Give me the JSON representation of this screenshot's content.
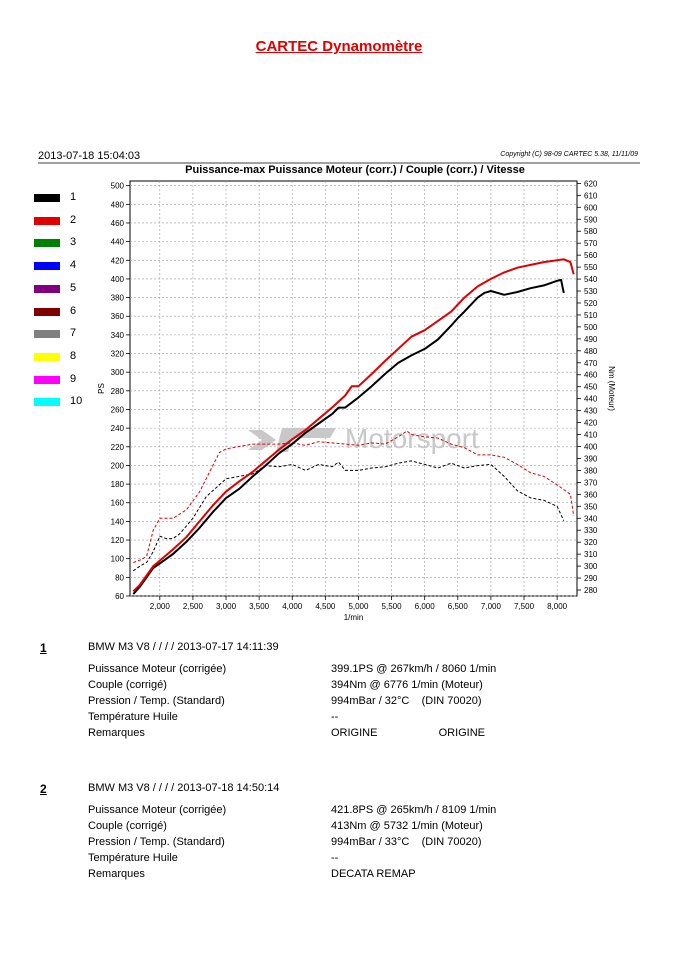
{
  "report_title": "CARTEC Dynamomètre",
  "header": {
    "date": "2013-07-18 15:04:03",
    "copyright": "Copyright (C) 98-09 CARTEC 5.38, 11/11/09"
  },
  "chart_data": {
    "type": "line",
    "title": "Puissance-max Puissance Moteur (corr.) / Couple (corr.) / Vitesse",
    "xlabel": "1/min",
    "ylabel": "PS",
    "y2label": "Nm (Moteur)",
    "xlim": [
      1550,
      8300
    ],
    "ylim": [
      60,
      505
    ],
    "y2lim": [
      275,
      622
    ],
    "grid": true,
    "watermark": "Motorsport",
    "x_ticks": [
      2000,
      2500,
      3000,
      3500,
      4000,
      4500,
      5000,
      5500,
      6000,
      6500,
      7000,
      7500,
      8000
    ],
    "x_tick_labels": [
      "2,000",
      "2,500",
      "3,000",
      "3,500",
      "4,000",
      "4,500",
      "5,000",
      "5,500",
      "6,000",
      "6,500",
      "7,000",
      "7,500",
      "8,000"
    ],
    "y_ticks": [
      60,
      80,
      100,
      120,
      140,
      160,
      180,
      200,
      220,
      240,
      260,
      280,
      300,
      320,
      340,
      360,
      380,
      400,
      420,
      440,
      460,
      480,
      500
    ],
    "y2_ticks": [
      280,
      290,
      300,
      310,
      320,
      330,
      340,
      350,
      360,
      370,
      380,
      390,
      400,
      410,
      420,
      430,
      440,
      450,
      460,
      470,
      480,
      490,
      500,
      510,
      520,
      530,
      540,
      550,
      560,
      570,
      580,
      590,
      600,
      610,
      620
    ],
    "legend": [
      {
        "label": "1",
        "color": "#000000"
      },
      {
        "label": "2",
        "color": "#e00000"
      },
      {
        "label": "3",
        "color": "#008000"
      },
      {
        "label": "4",
        "color": "#0000ff"
      },
      {
        "label": "5",
        "color": "#800080"
      },
      {
        "label": "6",
        "color": "#800000"
      },
      {
        "label": "7",
        "color": "#808080"
      },
      {
        "label": "8",
        "color": "#ffff00"
      },
      {
        "label": "9",
        "color": "#ff00ff"
      },
      {
        "label": "10",
        "color": "#00ffff"
      }
    ],
    "series": [
      {
        "name": "1",
        "kind": "power",
        "axis": "left",
        "color": "#000000",
        "dash": false,
        "x": [
          1600,
          1700,
          1800,
          1900,
          2000,
          2200,
          2400,
          2600,
          2800,
          3000,
          3200,
          3400,
          3600,
          3800,
          4000,
          4200,
          4400,
          4600,
          4700,
          4800,
          5000,
          5200,
          5400,
          5600,
          5800,
          6000,
          6200,
          6400,
          6500,
          6600,
          6800,
          6900,
          7000,
          7200,
          7400,
          7600,
          7800,
          8000,
          8060,
          8100
        ],
        "y": [
          62,
          70,
          80,
          90,
          95,
          105,
          118,
          133,
          150,
          165,
          175,
          188,
          200,
          213,
          223,
          235,
          245,
          255,
          262,
          262,
          273,
          285,
          298,
          310,
          318,
          325,
          335,
          350,
          358,
          365,
          380,
          385,
          387,
          383,
          386,
          390,
          393,
          398,
          399,
          385
        ]
      },
      {
        "name": "2",
        "kind": "power",
        "axis": "left",
        "color": "#e00000",
        "dash": false,
        "x": [
          1600,
          1700,
          1800,
          1900,
          2000,
          2200,
          2400,
          2600,
          2800,
          3000,
          3200,
          3400,
          3600,
          3800,
          4000,
          4200,
          4400,
          4600,
          4800,
          4900,
          5000,
          5200,
          5400,
          5600,
          5800,
          6000,
          6200,
          6400,
          6600,
          6800,
          7000,
          7200,
          7400,
          7600,
          7800,
          8000,
          8100,
          8200,
          8250
        ],
        "y": [
          65,
          72,
          82,
          92,
          98,
          110,
          123,
          140,
          157,
          172,
          183,
          193,
          205,
          217,
          228,
          238,
          250,
          262,
          275,
          285,
          285,
          298,
          312,
          325,
          338,
          345,
          355,
          365,
          380,
          392,
          400,
          407,
          412,
          415,
          418,
          420,
          421,
          418,
          405
        ]
      },
      {
        "name": "1",
        "kind": "torque",
        "axis": "right",
        "color": "#000000",
        "dash": true,
        "x": [
          1600,
          1700,
          1800,
          1900,
          2000,
          2100,
          2200,
          2300,
          2500,
          2700,
          2900,
          3000,
          3200,
          3400,
          3600,
          3800,
          4000,
          4200,
          4400,
          4600,
          4700,
          4800,
          5000,
          5200,
          5400,
          5600,
          5800,
          6000,
          6200,
          6400,
          6600,
          6800,
          7000,
          7200,
          7400,
          7600,
          7800,
          8000,
          8100
        ],
        "y": [
          296,
          300,
          303,
          312,
          325,
          323,
          323,
          327,
          340,
          358,
          368,
          373,
          375,
          377,
          384,
          383,
          385,
          380,
          385,
          383,
          387,
          380,
          380,
          382,
          383,
          386,
          388,
          385,
          382,
          386,
          382,
          384,
          385,
          375,
          363,
          357,
          355,
          350,
          338
        ]
      },
      {
        "name": "2",
        "kind": "torque",
        "axis": "right",
        "color": "#e00000",
        "dash": true,
        "x": [
          1600,
          1700,
          1800,
          1900,
          2000,
          2200,
          2400,
          2600,
          2800,
          2900,
          3000,
          3200,
          3400,
          3600,
          3800,
          4000,
          4200,
          4400,
          4600,
          4800,
          5000,
          5200,
          5400,
          5600,
          5732,
          5800,
          6000,
          6200,
          6400,
          6600,
          6800,
          7000,
          7200,
          7400,
          7600,
          7800,
          8000,
          8200,
          8250
        ],
        "y": [
          303,
          305,
          308,
          330,
          340,
          340,
          347,
          362,
          384,
          395,
          398,
          400,
          402,
          402,
          402,
          403,
          401,
          404,
          403,
          402,
          401,
          403,
          402,
          408,
          413,
          410,
          408,
          407,
          402,
          399,
          393,
          393,
          391,
          385,
          378,
          375,
          368,
          360,
          342
        ]
      }
    ]
  },
  "runs": [
    {
      "number": "1",
      "header": "BMW M3 V8 /  /  /  / 2013-07-17 14:11:39",
      "rows": [
        {
          "label": "Puissance Moteur (corrigée)",
          "value": "399.1PS @ 267km/h / 8060 1/min"
        },
        {
          "label": "Couple (corrigé)",
          "value": "394Nm @ 6776 1/min (Moteur)"
        },
        {
          "label": "Pression / Temp. (Standard)",
          "value": "994mBar / 32°C    (DIN 70020)"
        },
        {
          "label": "Température Huile",
          "value": "--"
        },
        {
          "label": "Remarques",
          "value": "ORIGINE                    ORIGINE"
        }
      ]
    },
    {
      "number": "2",
      "header": "BMW M3 V8 /  /  /  / 2013-07-18 14:50:14",
      "rows": [
        {
          "label": "Puissance Moteur (corrigée)",
          "value": "421.8PS @ 265km/h / 8109 1/min"
        },
        {
          "label": "Couple (corrigé)",
          "value": "413Nm @ 5732 1/min (Moteur)"
        },
        {
          "label": "Pression / Temp. (Standard)",
          "value": "994mBar / 33°C    (DIN 70020)"
        },
        {
          "label": "Température Huile",
          "value": "--"
        },
        {
          "label": "Remarques",
          "value": "DECATA REMAP"
        }
      ]
    }
  ]
}
